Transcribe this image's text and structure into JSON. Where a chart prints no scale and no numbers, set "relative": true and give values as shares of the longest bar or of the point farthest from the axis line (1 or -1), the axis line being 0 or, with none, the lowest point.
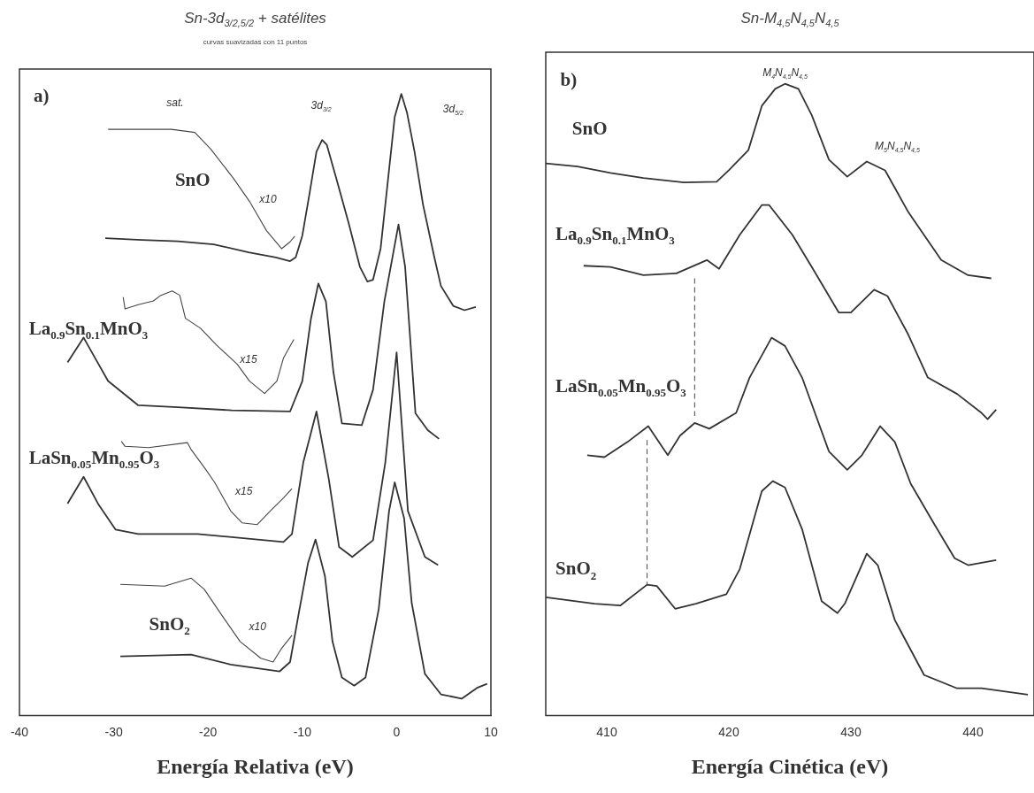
{
  "chart_data": [
    {
      "type": "line",
      "title": "Sn-3d$_{3/2,5/2}$ + satélites",
      "subtitle": "curvas suavizadas con 11 puntos",
      "xlabel": "Energía Relativa (eV)",
      "relative": true,
      "xlim": [
        -40,
        10
      ],
      "xticks": [
        -40,
        -30,
        -20,
        -10,
        0,
        10
      ],
      "series": [
        {
          "name": "SnO",
          "color": "#333333",
          "x": [
            -30.9,
            -27.0,
            -23.2,
            -19.4,
            -15.7,
            -12.8,
            -11.3,
            -10.7,
            -10.0,
            -9.2,
            -8.5,
            -7.9,
            -7.4,
            -6.4,
            -5.1,
            -3.9,
            -3.1,
            -2.5,
            -1.7,
            -0.9,
            -0.2,
            0.5,
            1.1,
            1.9,
            2.8,
            4.0,
            4.7,
            6.0,
            7.2,
            8.4
          ],
          "values": [
            0.768,
            0.765,
            0.763,
            0.758,
            0.745,
            0.737,
            0.731,
            0.737,
            0.772,
            0.843,
            0.907,
            0.926,
            0.918,
            0.864,
            0.793,
            0.722,
            0.698,
            0.701,
            0.751,
            0.864,
            0.963,
            1,
            0.97,
            0.907,
            0.822,
            0.737,
            0.691,
            0.659,
            0.652,
            0.657
          ]
        },
        {
          "color": "#444444",
          "x": [
            -30.6,
            -23.9,
            -21.4,
            -19.7,
            -17.3,
            -15.6,
            -13.8,
            -12.2,
            -11.3,
            -10.8
          ],
          "values": [
            0.943,
            0.943,
            0.938,
            0.911,
            0.864,
            0.827,
            0.78,
            0.751,
            0.762,
            0.771
          ]
        },
        {
          "name": "La$_{0.9}$Sn$_{0.1}$MnO$_{3}$",
          "color": "#333333",
          "x": [
            -34.9,
            -33.2,
            -32.2,
            -30.6,
            -27.4,
            -23.2,
            -17.5,
            -11.3,
            -10.0,
            -9.1,
            -8.3,
            -7.5,
            -6.7,
            -5.8,
            -3.7,
            -2.5,
            -1.3,
            0.2,
            0.9,
            2.0,
            3.3,
            4.5
          ],
          "values": [
            0.568,
            0.608,
            0.581,
            0.538,
            0.499,
            0.496,
            0.491,
            0.489,
            0.538,
            0.637,
            0.695,
            0.666,
            0.552,
            0.47,
            0.467,
            0.524,
            0.666,
            0.79,
            0.722,
            0.486,
            0.459,
            0.445
          ]
        },
        {
          "color": "#444444",
          "x": [
            -29.0,
            -28.8,
            -27.4,
            -25.8,
            -25.0,
            -23.8,
            -23.0,
            -22.4,
            -20.8,
            -19.1,
            -16.9,
            -15.6,
            -14.0,
            -12.7,
            -12.0,
            -10.9
          ],
          "values": [
            0.673,
            0.654,
            0.661,
            0.667,
            0.676,
            0.683,
            0.676,
            0.639,
            0.623,
            0.596,
            0.565,
            0.538,
            0.518,
            0.538,
            0.575,
            0.605
          ]
        },
        {
          "name": "LaSn$_{0.05}$Mn$_{0.95}$O$_{3}$",
          "color": "#333333",
          "x": [
            -34.9,
            -33.2,
            -31.6,
            -29.8,
            -27.4,
            -21.1,
            -12.0,
            -11.1,
            -9.9,
            -8.5,
            -7.2,
            -6.1,
            -4.7,
            -2.5,
            -1.2,
            0.0,
            1.2,
            3.0,
            4.4
          ],
          "values": [
            0.341,
            0.384,
            0.339,
            0.299,
            0.292,
            0.292,
            0.279,
            0.292,
            0.407,
            0.489,
            0.381,
            0.271,
            0.255,
            0.282,
            0.407,
            0.584,
            0.329,
            0.255,
            0.242
          ]
        },
        {
          "color": "#444444",
          "x": [
            -29.2,
            -28.8,
            -26.3,
            -22.2,
            -21.8,
            -20.3,
            -19.3,
            -17.6,
            -16.4,
            -14.8,
            -13.4,
            -12.0,
            -11.1
          ],
          "values": [
            0.441,
            0.433,
            0.431,
            0.439,
            0.428,
            0.397,
            0.375,
            0.329,
            0.31,
            0.307,
            0.329,
            0.35,
            0.365
          ]
        },
        {
          "name": "SnO$_{2}$",
          "color": "#333333",
          "x": [
            -29.3,
            -21.8,
            -17.6,
            -12.4,
            -11.3,
            -10.3,
            -9.4,
            -8.6,
            -7.6,
            -6.8,
            -5.8,
            -4.5,
            -3.3,
            -1.9,
            -0.8,
            -0.2,
            0.8,
            1.6,
            3.0,
            4.7,
            6.9,
            8.6,
            9.6
          ],
          "values": [
            0.095,
            0.098,
            0.082,
            0.071,
            0.086,
            0.171,
            0.245,
            0.283,
            0.224,
            0.119,
            0.061,
            0.048,
            0.061,
            0.171,
            0.329,
            0.375,
            0.317,
            0.181,
            0.067,
            0.034,
            0.027,
            0.045,
            0.051
          ]
        },
        {
          "color": "#444444",
          "x": [
            -29.3,
            -24.6,
            -21.8,
            -20.4,
            -18.3,
            -16.6,
            -14.4,
            -13.1,
            -12.2,
            -11.1
          ],
          "values": [
            0.211,
            0.208,
            0.221,
            0.203,
            0.156,
            0.119,
            0.092,
            0.086,
            0.108,
            0.129
          ]
        }
      ],
      "annotations": [
        "a)",
        "sat.",
        "3d$_{3/2}$",
        "3d$_{5/2}$",
        "x10",
        "x15",
        "x15",
        "x10"
      ]
    },
    {
      "type": "line",
      "title": "Sn-M$_{4,5}$N$_{4,5}$N$_{4,5}$",
      "xlabel": "Energía Cinética (eV)",
      "relative": true,
      "xlim": [
        405,
        445
      ],
      "xticks": [
        410,
        420,
        430,
        440
      ],
      "series": [
        {
          "name": "SnO",
          "color": "#333333",
          "x": [
            405.0,
            407.6,
            410.3,
            413.0,
            416.3,
            419.0,
            420.0,
            421.6,
            422.7,
            423.8,
            424.6,
            425.7,
            426.8,
            428.2,
            429.7,
            431.3,
            432.8,
            434.7,
            437.4,
            439.6,
            441.5
          ],
          "values": [
            0.874,
            0.869,
            0.859,
            0.851,
            0.844,
            0.845,
            0.863,
            0.895,
            0.965,
            0.992,
            1,
            0.992,
            0.95,
            0.88,
            0.853,
            0.877,
            0.863,
            0.797,
            0.721,
            0.697,
            0.692
          ]
        },
        {
          "name": "La$_{0.9}$Sn$_{0.1}$MnO$_{3}$",
          "color": "#333333",
          "x": [
            408.1,
            410.3,
            413.0,
            415.7,
            418.2,
            419.2,
            420.9,
            422.7,
            423.3,
            425.2,
            426.8,
            429.0,
            430.0,
            431.9,
            433.0,
            434.7,
            436.3,
            438.7,
            440.7,
            441.2,
            441.9
          ],
          "values": [
            0.712,
            0.71,
            0.697,
            0.7,
            0.721,
            0.707,
            0.761,
            0.808,
            0.808,
            0.761,
            0.71,
            0.638,
            0.638,
            0.674,
            0.664,
            0.603,
            0.535,
            0.509,
            0.479,
            0.469,
            0.484
          ]
        },
        {
          "color": "#555555",
          "line_style": "dashed",
          "x": [
            417.2,
            417.2
          ],
          "values": [
            0.692,
            0.474
          ]
        },
        {
          "name": "LaSn$_{0.05}$Mn$_{0.95}$O$_{3}$",
          "color": "#333333",
          "x": [
            408.4,
            409.8,
            411.7,
            413.4,
            415.0,
            416.0,
            417.2,
            418.4,
            420.6,
            421.7,
            423.5,
            424.6,
            426.0,
            428.2,
            429.7,
            430.9,
            432.4,
            433.6,
            434.9,
            436.8,
            438.5,
            439.6,
            441.9
          ],
          "values": [
            0.412,
            0.409,
            0.433,
            0.458,
            0.412,
            0.443,
            0.463,
            0.454,
            0.479,
            0.535,
            0.598,
            0.585,
            0.535,
            0.418,
            0.389,
            0.412,
            0.458,
            0.433,
            0.367,
            0.304,
            0.249,
            0.238,
            0.246
          ]
        },
        {
          "color": "#555555",
          "line_style": "dashed",
          "x": [
            413.3,
            413.3
          ],
          "values": [
            0.436,
            0.207
          ]
        },
        {
          "name": "SnO$_{2}$",
          "color": "#333333",
          "x": [
            405.0,
            409.0,
            411.1,
            413.3,
            414.1,
            415.6,
            417.3,
            419.8,
            420.9,
            422.7,
            423.6,
            424.6,
            426.0,
            427.6,
            428.9,
            429.5,
            431.3,
            432.2,
            433.6,
            436.0,
            438.7,
            440.7,
            444.5
          ],
          "values": [
            0.187,
            0.177,
            0.174,
            0.207,
            0.205,
            0.169,
            0.177,
            0.192,
            0.232,
            0.355,
            0.371,
            0.361,
            0.295,
            0.181,
            0.162,
            0.177,
            0.256,
            0.238,
            0.151,
            0.064,
            0.043,
            0.043,
            0.033
          ]
        }
      ],
      "annotations": [
        "b)",
        "M$_{4}$N$_{4,5}$N$_{4,5}$",
        "M$_{5}$N$_{4,5}$N$_{4,5}$"
      ]
    }
  ]
}
